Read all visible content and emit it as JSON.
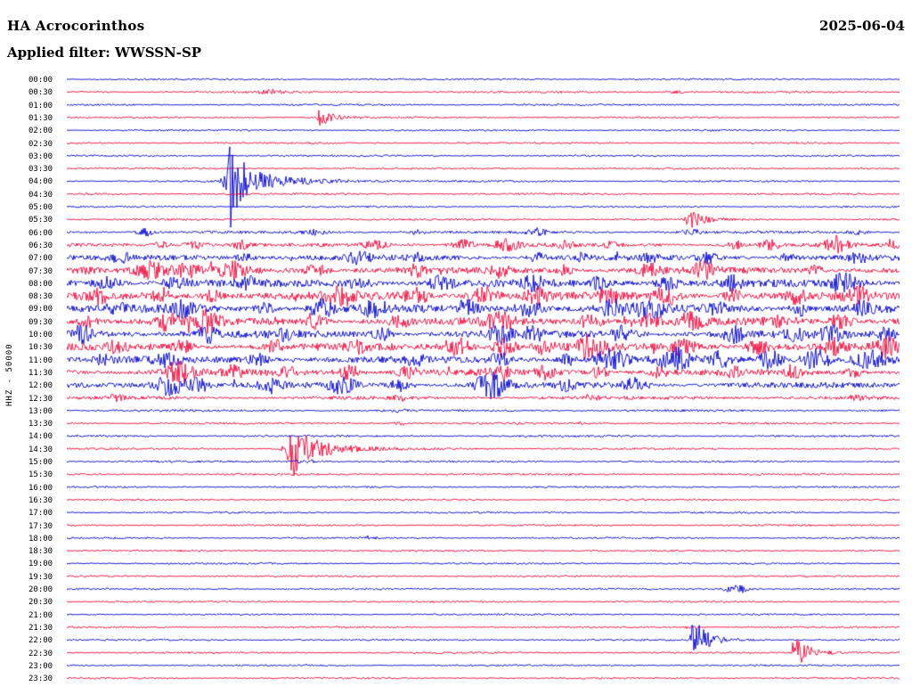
{
  "header": {
    "title": "HA Acrocorinthos",
    "date": "2025-06-04",
    "filter_label": "Applied filter: WWSSN-SP"
  },
  "chart_data": {
    "type": "line",
    "subtype": "helicorder-seismogram",
    "station": "HA Acrocorinthos",
    "date": "2025-06-04",
    "filter": "WWSSN-SP",
    "channel": "HHZ",
    "gain": "50000",
    "y_axis_label": "HHZ - 50000",
    "minutes_per_line": 30,
    "num_lines": 48,
    "line_colors": {
      "blue": "#0000cf",
      "red": "#f3063a"
    },
    "rows": [
      {
        "t": "00:00",
        "c": "blue",
        "n": 0.7
      },
      {
        "t": "00:30",
        "c": "red",
        "n": 0.8
      },
      {
        "t": "01:00",
        "c": "blue",
        "n": 0.7
      },
      {
        "t": "01:30",
        "c": "red",
        "n": 0.7
      },
      {
        "t": "02:00",
        "c": "blue",
        "n": 0.7
      },
      {
        "t": "02:30",
        "c": "red",
        "n": 0.7
      },
      {
        "t": "03:00",
        "c": "blue",
        "n": 0.7
      },
      {
        "t": "03:30",
        "c": "red",
        "n": 0.7
      },
      {
        "t": "04:00",
        "c": "blue",
        "n": 0.7
      },
      {
        "t": "04:30",
        "c": "red",
        "n": 0.8
      },
      {
        "t": "05:00",
        "c": "blue",
        "n": 0.7
      },
      {
        "t": "05:30",
        "c": "red",
        "n": 0.8
      },
      {
        "t": "06:00",
        "c": "blue",
        "n": 1.1
      },
      {
        "t": "06:30",
        "c": "red",
        "n": 1.5
      },
      {
        "t": "07:00",
        "c": "blue",
        "n": 2.2
      },
      {
        "t": "07:30",
        "c": "red",
        "n": 2.6
      },
      {
        "t": "08:00",
        "c": "blue",
        "n": 3.0
      },
      {
        "t": "08:30",
        "c": "red",
        "n": 3.2
      },
      {
        "t": "09:00",
        "c": "blue",
        "n": 3.2
      },
      {
        "t": "09:30",
        "c": "red",
        "n": 3.0
      },
      {
        "t": "10:00",
        "c": "blue",
        "n": 3.0
      },
      {
        "t": "10:30",
        "c": "red",
        "n": 3.0
      },
      {
        "t": "11:00",
        "c": "blue",
        "n": 2.8
      },
      {
        "t": "11:30",
        "c": "red",
        "n": 2.6
      },
      {
        "t": "12:00",
        "c": "blue",
        "n": 2.2
      },
      {
        "t": "12:30",
        "c": "red",
        "n": 1.4
      },
      {
        "t": "13:00",
        "c": "blue",
        "n": 0.9
      },
      {
        "t": "13:30",
        "c": "red",
        "n": 0.8
      },
      {
        "t": "14:00",
        "c": "blue",
        "n": 0.8
      },
      {
        "t": "14:30",
        "c": "red",
        "n": 0.8
      },
      {
        "t": "15:00",
        "c": "blue",
        "n": 0.8
      },
      {
        "t": "15:30",
        "c": "red",
        "n": 0.8
      },
      {
        "t": "16:00",
        "c": "blue",
        "n": 0.7
      },
      {
        "t": "16:30",
        "c": "red",
        "n": 0.7
      },
      {
        "t": "17:00",
        "c": "blue",
        "n": 0.7
      },
      {
        "t": "17:30",
        "c": "red",
        "n": 0.7
      },
      {
        "t": "18:00",
        "c": "blue",
        "n": 0.7
      },
      {
        "t": "18:30",
        "c": "red",
        "n": 0.7
      },
      {
        "t": "19:00",
        "c": "blue",
        "n": 0.7
      },
      {
        "t": "19:30",
        "c": "red",
        "n": 0.7
      },
      {
        "t": "20:00",
        "c": "blue",
        "n": 0.7
      },
      {
        "t": "20:30",
        "c": "red",
        "n": 0.7
      },
      {
        "t": "21:00",
        "c": "blue",
        "n": 0.7
      },
      {
        "t": "21:30",
        "c": "red",
        "n": 0.7
      },
      {
        "t": "22:00",
        "c": "blue",
        "n": 0.7
      },
      {
        "t": "22:30",
        "c": "red",
        "n": 0.7
      },
      {
        "t": "23:00",
        "c": "blue",
        "n": 0.7
      },
      {
        "t": "23:30",
        "c": "red",
        "n": 0.7
      }
    ],
    "events_format": [
      "row_index",
      "x_fraction_of_line",
      "amplitude_px",
      "shape(blob|spike)",
      "width_or_decay_px"
    ],
    "events": [
      [
        1,
        0.245,
        1.8,
        "blob",
        10
      ],
      [
        1,
        0.73,
        1.2,
        "blob",
        8
      ],
      [
        3,
        0.303,
        9,
        "spike",
        16
      ],
      [
        8,
        0.19,
        10,
        "blob",
        3
      ],
      [
        8,
        0.196,
        55,
        "spike",
        9
      ],
      [
        8,
        0.205,
        13,
        "spike",
        55
      ],
      [
        11,
        0.751,
        15,
        "blob",
        4
      ],
      [
        11,
        0.757,
        6,
        "spike",
        16
      ],
      [
        12,
        0.095,
        4,
        "blob",
        7
      ],
      [
        12,
        0.3,
        2.5,
        "blob",
        9
      ],
      [
        12,
        0.42,
        3,
        "blob",
        7
      ],
      [
        12,
        0.565,
        4,
        "blob",
        7
      ],
      [
        12,
        0.75,
        3,
        "blob",
        7
      ],
      [
        12,
        0.95,
        2.5,
        "blob",
        7
      ],
      [
        13,
        0.115,
        3,
        "blob",
        7
      ],
      [
        13,
        0.155,
        4,
        "blob",
        9
      ],
      [
        13,
        0.21,
        5,
        "blob",
        6
      ],
      [
        13,
        0.37,
        4,
        "blob",
        9
      ],
      [
        13,
        0.475,
        6,
        "blob",
        9
      ],
      [
        13,
        0.53,
        6,
        "blob",
        11
      ],
      [
        13,
        0.6,
        4,
        "blob",
        7
      ],
      [
        13,
        0.655,
        3,
        "blob",
        7
      ],
      [
        13,
        0.8,
        5,
        "blob",
        7
      ],
      [
        13,
        0.845,
        5,
        "blob",
        7
      ],
      [
        13,
        0.925,
        9,
        "blob",
        9
      ],
      [
        13,
        0.99,
        5,
        "blob",
        6
      ],
      [
        14,
        0.065,
        4,
        "blob",
        9
      ],
      [
        14,
        0.215,
        5,
        "blob",
        7
      ],
      [
        14,
        0.35,
        7,
        "blob",
        9
      ],
      [
        14,
        0.42,
        4,
        "blob",
        7
      ],
      [
        14,
        0.565,
        5,
        "blob",
        7
      ],
      [
        14,
        0.62,
        4,
        "blob",
        7
      ],
      [
        14,
        0.7,
        4,
        "blob",
        7
      ],
      [
        14,
        0.77,
        5,
        "blob",
        7
      ],
      [
        14,
        0.865,
        4,
        "blob",
        7
      ],
      [
        14,
        0.95,
        5,
        "blob",
        7
      ],
      [
        15,
        0.02,
        5,
        "blob",
        9
      ],
      [
        15,
        0.1,
        8,
        "blob",
        12
      ],
      [
        15,
        0.145,
        7,
        "blob",
        9
      ],
      [
        15,
        0.2,
        8,
        "blob",
        11
      ],
      [
        15,
        0.3,
        6,
        "blob",
        9
      ],
      [
        15,
        0.42,
        5,
        "blob",
        7
      ],
      [
        15,
        0.52,
        6,
        "blob",
        7
      ],
      [
        15,
        0.6,
        5,
        "blob",
        7
      ],
      [
        15,
        0.7,
        6,
        "blob",
        9
      ],
      [
        15,
        0.765,
        8,
        "blob",
        9
      ],
      [
        15,
        0.9,
        5,
        "blob",
        7
      ],
      [
        16,
        0.05,
        6,
        "blob",
        9
      ],
      [
        16,
        0.13,
        7,
        "blob",
        9
      ],
      [
        16,
        0.22,
        6,
        "blob",
        7
      ],
      [
        16,
        0.35,
        7,
        "blob",
        9
      ],
      [
        16,
        0.45,
        7,
        "blob",
        9
      ],
      [
        16,
        0.56,
        8,
        "blob",
        9
      ],
      [
        16,
        0.64,
        6,
        "blob",
        7
      ],
      [
        16,
        0.72,
        7,
        "blob",
        9
      ],
      [
        16,
        0.8,
        6,
        "blob",
        7
      ],
      [
        16,
        0.935,
        10,
        "blob",
        11
      ],
      [
        17,
        0.04,
        6,
        "blob",
        7
      ],
      [
        17,
        0.115,
        7,
        "blob",
        7
      ],
      [
        17,
        0.175,
        6,
        "blob",
        7
      ],
      [
        17,
        0.33,
        9,
        "blob",
        11
      ],
      [
        17,
        0.42,
        8,
        "blob",
        9
      ],
      [
        17,
        0.5,
        9,
        "blob",
        11
      ],
      [
        17,
        0.565,
        8,
        "blob",
        9
      ],
      [
        17,
        0.65,
        7,
        "blob",
        7
      ],
      [
        17,
        0.72,
        9,
        "blob",
        9
      ],
      [
        17,
        0.8,
        7,
        "blob",
        7
      ],
      [
        17,
        0.875,
        7,
        "blob",
        7
      ],
      [
        17,
        0.95,
        8,
        "blob",
        9
      ],
      [
        18,
        0.06,
        6,
        "blob",
        7
      ],
      [
        18,
        0.14,
        7,
        "blob",
        9
      ],
      [
        18,
        0.24,
        6,
        "blob",
        7
      ],
      [
        18,
        0.305,
        9,
        "blob",
        9
      ],
      [
        18,
        0.37,
        8,
        "blob",
        9
      ],
      [
        18,
        0.48,
        8,
        "blob",
        9
      ],
      [
        18,
        0.555,
        9,
        "blob",
        11
      ],
      [
        18,
        0.655,
        8,
        "blob",
        9
      ],
      [
        18,
        0.7,
        10,
        "blob",
        11
      ],
      [
        18,
        0.78,
        7,
        "blob",
        7
      ],
      [
        18,
        0.88,
        7,
        "blob",
        7
      ],
      [
        18,
        0.955,
        8,
        "blob",
        9
      ],
      [
        19,
        0.025,
        6,
        "blob",
        7
      ],
      [
        19,
        0.12,
        8,
        "blob",
        9
      ],
      [
        19,
        0.17,
        10,
        "blob",
        11
      ],
      [
        19,
        0.3,
        7,
        "blob",
        7
      ],
      [
        19,
        0.4,
        6,
        "blob",
        7
      ],
      [
        19,
        0.52,
        9,
        "blob",
        11
      ],
      [
        19,
        0.63,
        8,
        "blob",
        9
      ],
      [
        19,
        0.7,
        7,
        "blob",
        7
      ],
      [
        19,
        0.75,
        9,
        "blob",
        9
      ],
      [
        19,
        0.85,
        6,
        "blob",
        7
      ],
      [
        19,
        0.93,
        8,
        "blob",
        9
      ],
      [
        20,
        0.02,
        8,
        "blob",
        9
      ],
      [
        20,
        0.17,
        8,
        "blob",
        9
      ],
      [
        20,
        0.26,
        7,
        "blob",
        7
      ],
      [
        20,
        0.38,
        6,
        "blob",
        7
      ],
      [
        20,
        0.52,
        8,
        "blob",
        9
      ],
      [
        20,
        0.56,
        8,
        "blob",
        7
      ],
      [
        20,
        0.67,
        9,
        "blob",
        9
      ],
      [
        20,
        0.8,
        8,
        "blob",
        9
      ],
      [
        20,
        0.875,
        6,
        "blob",
        7
      ],
      [
        20,
        0.92,
        8,
        "blob",
        9
      ],
      [
        20,
        0.985,
        7,
        "blob",
        7
      ],
      [
        21,
        0.06,
        5,
        "blob",
        7
      ],
      [
        21,
        0.14,
        6,
        "blob",
        7
      ],
      [
        21,
        0.25,
        6,
        "blob",
        7
      ],
      [
        21,
        0.35,
        6,
        "blob",
        7
      ],
      [
        21,
        0.47,
        10,
        "blob",
        11
      ],
      [
        21,
        0.525,
        9,
        "blob",
        9
      ],
      [
        21,
        0.575,
        8,
        "blob",
        7
      ],
      [
        21,
        0.63,
        11,
        "blob",
        11
      ],
      [
        21,
        0.74,
        9,
        "blob",
        9
      ],
      [
        21,
        0.83,
        8,
        "blob",
        9
      ],
      [
        21,
        0.92,
        8,
        "blob",
        7
      ],
      [
        21,
        0.985,
        9,
        "blob",
        9
      ],
      [
        22,
        0.045,
        5,
        "blob",
        7
      ],
      [
        22,
        0.12,
        9,
        "blob",
        9
      ],
      [
        22,
        0.23,
        6,
        "blob",
        7
      ],
      [
        22,
        0.42,
        6,
        "blob",
        7
      ],
      [
        22,
        0.52,
        7,
        "blob",
        7
      ],
      [
        22,
        0.6,
        6,
        "blob",
        7
      ],
      [
        22,
        0.655,
        11,
        "blob",
        11
      ],
      [
        22,
        0.73,
        13,
        "blob",
        11
      ],
      [
        22,
        0.785,
        8,
        "blob",
        7
      ],
      [
        22,
        0.845,
        9,
        "blob",
        9
      ],
      [
        22,
        0.9,
        11,
        "blob",
        11
      ],
      [
        22,
        0.965,
        12,
        "blob",
        11
      ],
      [
        23,
        0.135,
        11,
        "blob",
        11
      ],
      [
        23,
        0.2,
        6,
        "blob",
        7
      ],
      [
        23,
        0.265,
        5,
        "blob",
        7
      ],
      [
        23,
        0.34,
        8,
        "blob",
        9
      ],
      [
        23,
        0.41,
        6,
        "blob",
        7
      ],
      [
        23,
        0.52,
        7,
        "blob",
        9
      ],
      [
        23,
        0.575,
        6,
        "blob",
        7
      ],
      [
        23,
        0.64,
        6,
        "blob",
        7
      ],
      [
        23,
        0.71,
        5,
        "blob",
        7
      ],
      [
        23,
        0.8,
        5,
        "blob",
        7
      ],
      [
        23,
        0.875,
        4,
        "blob",
        7
      ],
      [
        23,
        0.945,
        4,
        "blob",
        7
      ],
      [
        24,
        0.125,
        12,
        "blob",
        13
      ],
      [
        24,
        0.16,
        8,
        "blob",
        9
      ],
      [
        24,
        0.245,
        8,
        "blob",
        9
      ],
      [
        24,
        0.33,
        8,
        "blob",
        11
      ],
      [
        24,
        0.4,
        6,
        "blob",
        7
      ],
      [
        24,
        0.51,
        13,
        "blob",
        13
      ],
      [
        24,
        0.6,
        5,
        "blob",
        7
      ],
      [
        24,
        0.68,
        7,
        "blob",
        9
      ],
      [
        25,
        0.06,
        3,
        "blob",
        7
      ],
      [
        25,
        0.4,
        3,
        "blob",
        7
      ],
      [
        25,
        0.63,
        2.5,
        "blob",
        7
      ],
      [
        25,
        0.95,
        2.5,
        "blob",
        7
      ],
      [
        26,
        0.4,
        1.5,
        "blob",
        5
      ],
      [
        27,
        0.4,
        2.5,
        "blob",
        4
      ],
      [
        27,
        0.62,
        1.5,
        "blob",
        5
      ],
      [
        29,
        0.263,
        5,
        "blob",
        4
      ],
      [
        29,
        0.268,
        26,
        "spike",
        18
      ],
      [
        29,
        0.272,
        9,
        "spike",
        48
      ],
      [
        30,
        0.29,
        1.5,
        "blob",
        15
      ],
      [
        36,
        0.362,
        2,
        "blob",
        5
      ],
      [
        40,
        0.8,
        4.5,
        "blob",
        7
      ],
      [
        40,
        0.81,
        3,
        "spike",
        12
      ],
      [
        43,
        0.75,
        2,
        "blob",
        5
      ],
      [
        44,
        0.752,
        22,
        "spike",
        8
      ],
      [
        44,
        0.758,
        8,
        "spike",
        24
      ],
      [
        45,
        0.872,
        14,
        "spike",
        12
      ],
      [
        45,
        0.878,
        6,
        "spike",
        28
      ]
    ]
  }
}
